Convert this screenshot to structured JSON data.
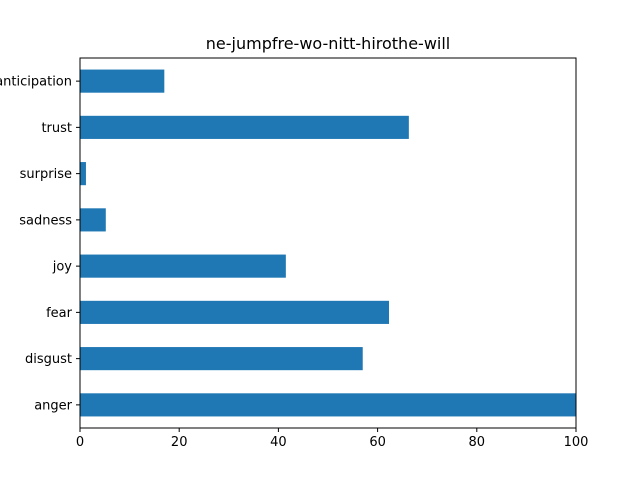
{
  "chart_data": {
    "type": "bar",
    "orientation": "horizontal",
    "title": "ne-jumpfre-wo-nitt-hirothe-will",
    "xlabel": "",
    "ylabel": "",
    "categories": [
      "anger",
      "disgust",
      "fear",
      "joy",
      "sadness",
      "surprise",
      "trust",
      "anticipation"
    ],
    "values": [
      100,
      57,
      62.3,
      41.5,
      5.2,
      1.2,
      66.3,
      17
    ],
    "xlim": [
      0,
      100
    ],
    "xticks": [
      0,
      20,
      40,
      60,
      80,
      100
    ],
    "grid": false,
    "legend": false,
    "bar_color": "#1f77b4"
  }
}
